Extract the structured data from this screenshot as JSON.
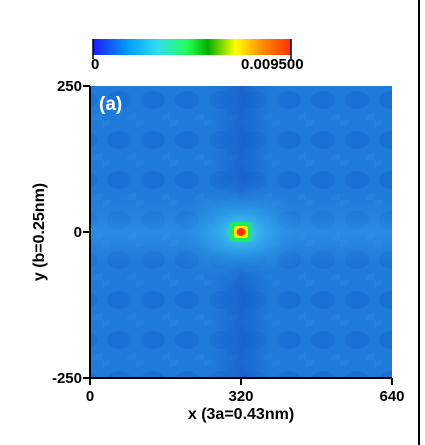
{
  "chart_data": {
    "type": "heatmap",
    "panel_label": "(a)",
    "title": "",
    "xlabel": "x (3a=0.43nm)",
    "ylabel": "y (b=0.25nm)",
    "xlim": [
      0,
      640
    ],
    "ylim": [
      -250,
      250
    ],
    "x_ticks": [
      0,
      320,
      640
    ],
    "y_ticks": [
      -250,
      0,
      250
    ],
    "x_tick_labels": [
      "0",
      "320",
      "640"
    ],
    "y_tick_labels": [
      "-250",
      "0",
      "250"
    ],
    "colorbar": {
      "min": 0,
      "max": 0.0095,
      "min_label": "0",
      "max_label": "0.009500",
      "colors": [
        "#1a1aff",
        "#00a0ff",
        "#33ddee",
        "#22ff55",
        "#00b000",
        "#ffff00",
        "#ff8800",
        "#ff3300"
      ]
    },
    "background_color": "#1f7bd9",
    "peak": {
      "x": 320,
      "y": 0,
      "value": 0.0095
    },
    "pattern": "central peak with a low-intensity X-shaped cross and a periodic lattice modulation"
  }
}
